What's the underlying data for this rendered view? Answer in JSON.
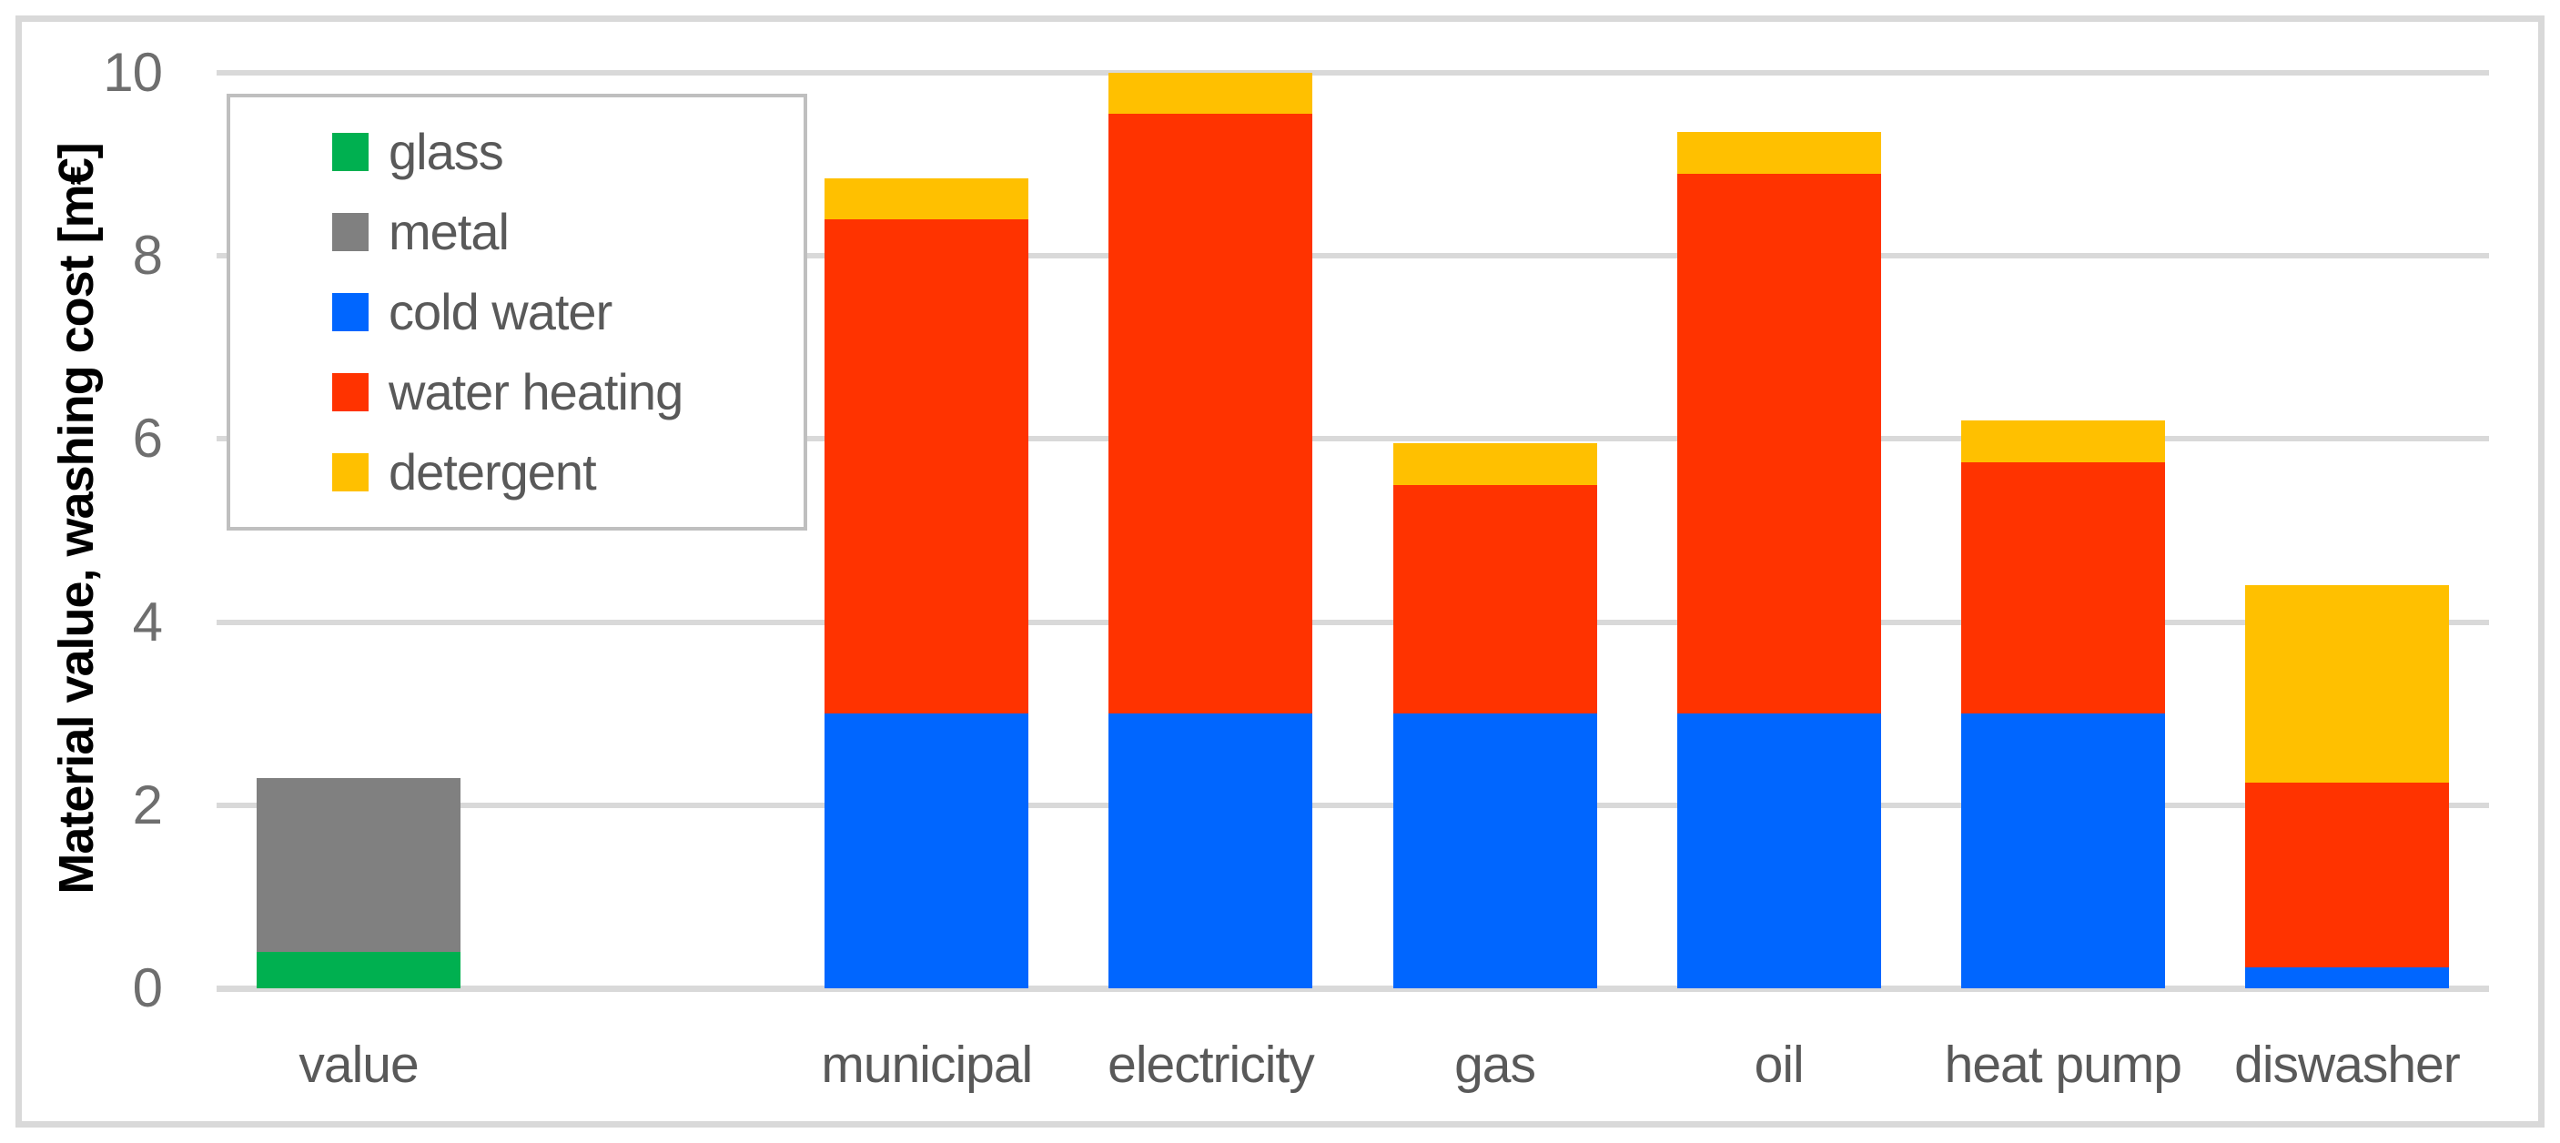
{
  "chart_data": {
    "type": "bar",
    "stacked": true,
    "title": "",
    "xlabel": "",
    "ylabel": "Material value, washing cost [m€]",
    "ylim": [
      0,
      10
    ],
    "yticks": [
      0,
      2,
      4,
      6,
      8,
      10
    ],
    "grid": "horizontal",
    "legend_position": "upper-left-inside",
    "categories": [
      "value",
      "",
      "municipal",
      "electricity",
      "gas",
      "oil",
      "heat pump",
      "diswasher"
    ],
    "series": [
      {
        "name": "glass",
        "color": "#00B050",
        "values": [
          0.4,
          0,
          0,
          0,
          0,
          0,
          0,
          0
        ]
      },
      {
        "name": "metal",
        "color": "#808080",
        "values": [
          1.9,
          0,
          0,
          0,
          0,
          0,
          0,
          0
        ]
      },
      {
        "name": "cold water",
        "color": "#0066FF",
        "values": [
          0,
          0,
          3.0,
          3.0,
          3.0,
          3.0,
          3.0,
          0.23
        ]
      },
      {
        "name": "water heating",
        "color": "#FF3300",
        "values": [
          0,
          0,
          5.4,
          6.55,
          2.5,
          5.9,
          2.75,
          2.02
        ]
      },
      {
        "name": "detergent",
        "color": "#FFC000",
        "values": [
          0,
          0,
          0.45,
          0.45,
          0.45,
          0.45,
          0.45,
          2.15
        ]
      }
    ],
    "stack_totals": {
      "value": 2.3,
      "municipal": 8.85,
      "electricity": 10.0,
      "gas": 5.95,
      "oil": 9.35,
      "heat pump": 6.2,
      "diswasher": 4.4
    },
    "colors": {
      "gridline": "#D9D9D9",
      "frame_border": "#D9D9D9",
      "legend_border": "#BFBFBF",
      "ytick_text": "#6E6E6E",
      "xtick_text": "#595959",
      "legend_text": "#595959",
      "ylabel_text": "#000000"
    }
  }
}
